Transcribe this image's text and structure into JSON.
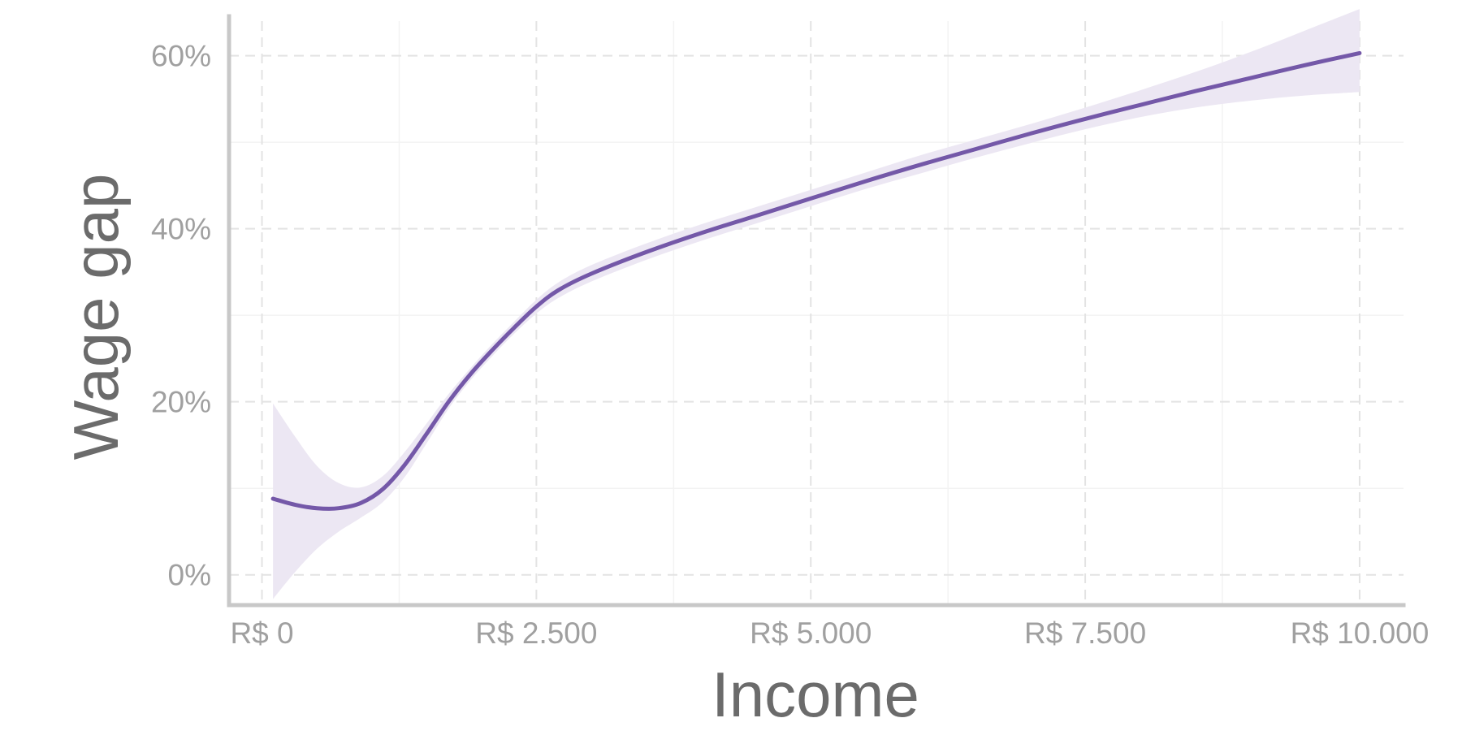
{
  "chart_data": {
    "type": "line",
    "xlabel": "Income",
    "ylabel": "Wage gap",
    "xlim": [
      -300,
      10400
    ],
    "ylim": [
      -3.5,
      64
    ],
    "x_ticks": [
      {
        "value": 0,
        "label": "R$ 0"
      },
      {
        "value": 2500,
        "label": "R$ 2.500"
      },
      {
        "value": 5000,
        "label": "R$ 5.000"
      },
      {
        "value": 7500,
        "label": "R$ 7.500"
      },
      {
        "value": 10000,
        "label": "R$ 10.000"
      }
    ],
    "y_ticks": [
      {
        "value": 0,
        "label": "0%"
      },
      {
        "value": 20,
        "label": "20%"
      },
      {
        "value": 40,
        "label": "40%"
      },
      {
        "value": 60,
        "label": "60%"
      }
    ],
    "grid": true,
    "series": [
      {
        "color": "#7458a8",
        "band_color": "#ece7f3",
        "x": [
          100,
          300,
          500,
          700,
          900,
          1100,
          1300,
          1500,
          1700,
          1900,
          2100,
          2300,
          2500,
          2700,
          3000,
          3500,
          4000,
          4500,
          5000,
          5500,
          6000,
          6500,
          7000,
          7500,
          8000,
          8500,
          9000,
          9500,
          10000
        ],
        "y": [
          8.8,
          8.1,
          7.7,
          7.7,
          8.3,
          9.9,
          12.7,
          16.3,
          20.0,
          23.2,
          26.0,
          28.6,
          31.0,
          32.9,
          34.8,
          37.3,
          39.5,
          41.5,
          43.5,
          45.5,
          47.4,
          49.2,
          51.0,
          52.7,
          54.3,
          55.9,
          57.4,
          58.9,
          60.3
        ],
        "lower": [
          -2.8,
          0.3,
          3.0,
          5.0,
          6.6,
          8.4,
          11.3,
          15.2,
          19.2,
          22.5,
          25.3,
          27.9,
          30.2,
          32.0,
          33.9,
          36.4,
          38.6,
          40.6,
          42.6,
          44.6,
          46.4,
          48.2,
          49.9,
          51.5,
          52.9,
          54.0,
          54.8,
          55.4,
          55.8
        ],
        "upper": [
          19.8,
          16.0,
          12.6,
          10.6,
          10.1,
          11.4,
          14.2,
          17.5,
          20.9,
          23.9,
          26.7,
          29.3,
          31.8,
          33.8,
          35.8,
          38.3,
          40.5,
          42.5,
          44.5,
          46.5,
          48.5,
          50.3,
          52.1,
          54.0,
          56.0,
          58.1,
          60.4,
          62.9,
          65.4
        ]
      }
    ]
  }
}
